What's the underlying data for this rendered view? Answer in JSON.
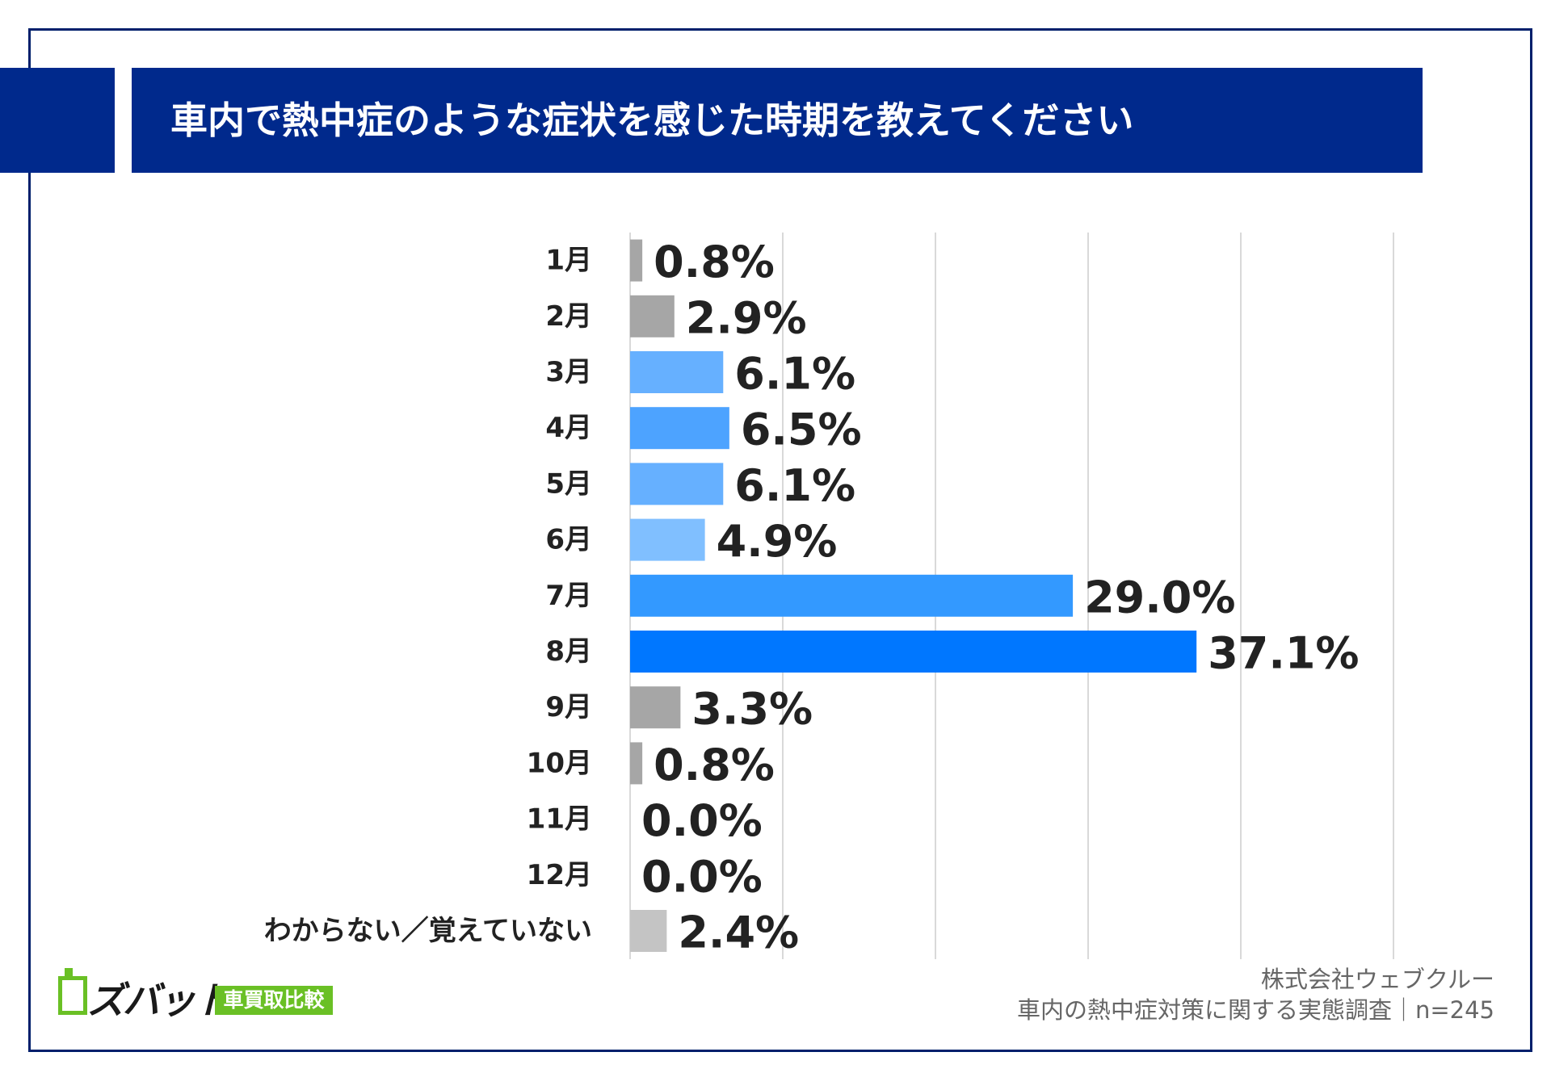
{
  "title": "車内で熱中症のような症状を感じた時期を教えてください",
  "chart_data": {
    "type": "bar",
    "orientation": "horizontal",
    "title": "車内で熱中症のような症状を感じた時期を教えてください",
    "categories": [
      "1月",
      "2月",
      "3月",
      "4月",
      "5月",
      "6月",
      "7月",
      "8月",
      "9月",
      "10月",
      "11月",
      "12月",
      "わからない／覚えていない"
    ],
    "values": [
      0.8,
      2.9,
      6.1,
      6.5,
      6.1,
      4.9,
      29.0,
      37.1,
      3.3,
      0.8,
      0.0,
      0.0,
      2.4
    ],
    "value_labels": [
      "0.8%",
      "2.9%",
      "6.1%",
      "6.5%",
      "6.1%",
      "4.9%",
      "29.0%",
      "37.1%",
      "3.3%",
      "0.8%",
      "0.0%",
      "0.0%",
      "2.4%"
    ],
    "bar_colors": [
      "#a6a6a6",
      "#a6a6a6",
      "#66b0ff",
      "#4da3ff",
      "#66b0ff",
      "#80bfff",
      "#3399ff",
      "#0077ff",
      "#a6a6a6",
      "#a6a6a6",
      "#a6a6a6",
      "#a6a6a6",
      "#c4c4c4"
    ],
    "xlim": [
      0,
      50
    ],
    "gridlines": [
      0,
      10,
      20,
      30,
      40,
      50
    ],
    "xlabel": "",
    "ylabel": "",
    "unit": "%"
  },
  "credit": {
    "company": "株式会社ウェブクルー",
    "survey": "車内の熱中症対策に関する実態調査｜n=245"
  },
  "logo": {
    "name": "ズバット",
    "badge": "車買取比較"
  },
  "colors": {
    "header": "#00298c",
    "frame": "#001f6b",
    "logo_green": "#6ac025"
  }
}
